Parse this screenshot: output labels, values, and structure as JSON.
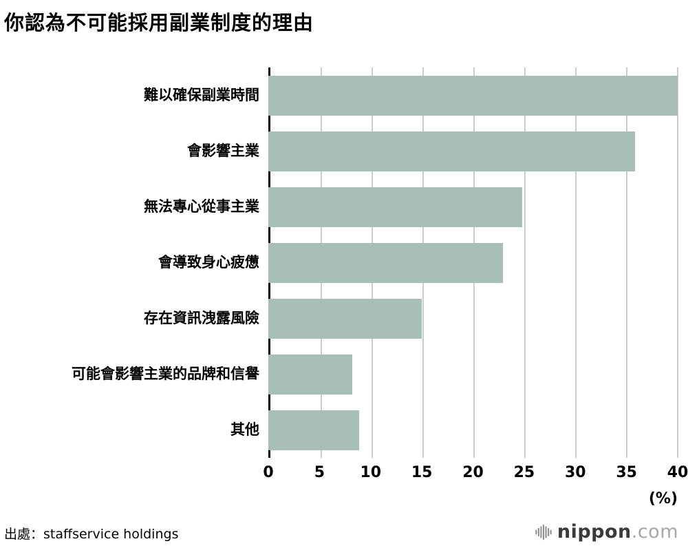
{
  "title": "你認為不可能採用副業制度的理由",
  "unit_label": "(%)",
  "source": "出處：staffservice holdings",
  "logo": {
    "name": "nippon",
    "suffix": ".com"
  },
  "colors": {
    "bar": "#a7bfb8",
    "grid": "#cccccc",
    "axis": "#000000",
    "logo_icon": "#8f8f8f"
  },
  "chart_data": {
    "type": "bar",
    "orientation": "horizontal",
    "title": "你認為不可能採用副業制度的理由",
    "categories": [
      "難以確保副業時間",
      "會影響主業",
      "無法專心從事主業",
      "會導致身心疲憊",
      "存在資訊洩露風險",
      "可能會影響主業的品牌和信譽",
      "其他"
    ],
    "values": [
      40.0,
      35.8,
      24.8,
      22.9,
      15.0,
      8.2,
      8.9
    ],
    "xlabel": "(%)",
    "ylabel": "",
    "xlim": [
      0,
      40
    ],
    "xticks": [
      0,
      5,
      10,
      15,
      20,
      25,
      30,
      35,
      40
    ],
    "grid": true,
    "legend": false,
    "source": "出處：staffservice holdings"
  }
}
